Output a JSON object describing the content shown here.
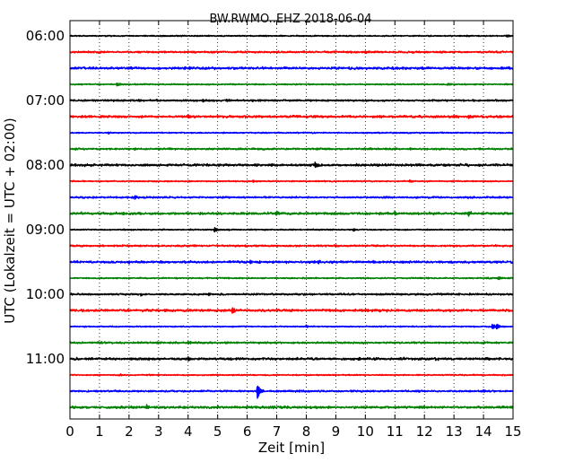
{
  "chart_data": {
    "type": "line",
    "title": "BW.RWMO..EHZ 2018-06-04",
    "xlabel": "Zeit  [min]",
    "ylabel": "UTC (Lokalzeit = UTC + 02:00)",
    "xlim": [
      0,
      15
    ],
    "x_ticks": [
      "0",
      "1",
      "2",
      "3",
      "4",
      "5",
      "6",
      "7",
      "8",
      "9",
      "10",
      "11",
      "12",
      "13",
      "14",
      "15"
    ],
    "y_ticks": [
      {
        "label": "06:00",
        "trace": 0
      },
      {
        "label": "07:00",
        "trace": 4
      },
      {
        "label": "08:00",
        "trace": 8
      },
      {
        "label": "09:00",
        "trace": 12
      },
      {
        "label": "10:00",
        "trace": 16
      },
      {
        "label": "11:00",
        "trace": 20
      }
    ],
    "grid": "vertical dotted",
    "color_cycle": [
      "#000000",
      "#ff0000",
      "#0000ff",
      "#008000"
    ],
    "trace_minutes": 15,
    "traces": [
      {
        "start": "06:00",
        "events": [
          {
            "t": 14.8,
            "amp": 1.2
          }
        ]
      },
      {
        "start": "06:15",
        "events": [
          {
            "t": 10.0,
            "amp": 1.8
          }
        ]
      },
      {
        "start": "06:30",
        "events": [
          {
            "t": 3.9,
            "amp": 0.9
          }
        ]
      },
      {
        "start": "06:45",
        "events": [
          {
            "t": 1.6,
            "amp": 2.0
          },
          {
            "t": 12.8,
            "amp": 1.0
          }
        ]
      },
      {
        "start": "07:00",
        "events": [
          {
            "t": 4.5,
            "amp": 1.8
          },
          {
            "t": 5.3,
            "amp": 1.2
          }
        ]
      },
      {
        "start": "07:15",
        "events": [
          {
            "t": 4.0,
            "amp": 1.6
          },
          {
            "t": 13.5,
            "amp": 1.6
          }
        ]
      },
      {
        "start": "07:30",
        "events": [
          {
            "t": 1.3,
            "amp": 1.2
          }
        ]
      },
      {
        "start": "07:45",
        "events": [
          {
            "t": 2.2,
            "amp": 1.0
          },
          {
            "t": 11.0,
            "amp": 1.0
          }
        ]
      },
      {
        "start": "08:00",
        "events": [
          {
            "t": 2.5,
            "amp": 1.4
          },
          {
            "t": 8.3,
            "amp": 3.5
          }
        ]
      },
      {
        "start": "08:15",
        "events": [
          {
            "t": 6.2,
            "amp": 1.2
          },
          {
            "t": 11.5,
            "amp": 1.2
          }
        ]
      },
      {
        "start": "08:30",
        "events": [
          {
            "t": 2.2,
            "amp": 2.2
          },
          {
            "t": 5.3,
            "amp": 1.0
          }
        ]
      },
      {
        "start": "08:45",
        "events": [
          {
            "t": 7.0,
            "amp": 2.6
          },
          {
            "t": 11.0,
            "amp": 2.4
          },
          {
            "t": 13.5,
            "amp": 2.4
          }
        ]
      },
      {
        "start": "09:00",
        "events": [
          {
            "t": 4.9,
            "amp": 3.2
          },
          {
            "t": 9.6,
            "amp": 1.4
          }
        ]
      },
      {
        "start": "09:15",
        "events": [
          {
            "t": 9.0,
            "amp": 0.9
          }
        ]
      },
      {
        "start": "09:30",
        "events": [
          {
            "t": 6.1,
            "amp": 2.0
          },
          {
            "t": 8.4,
            "amp": 2.2
          },
          {
            "t": 2.0,
            "amp": 1.2
          }
        ]
      },
      {
        "start": "09:45",
        "events": [
          {
            "t": 14.5,
            "amp": 2.0
          }
        ]
      },
      {
        "start": "10:00",
        "events": [
          {
            "t": 4.7,
            "amp": 1.8
          },
          {
            "t": 2.4,
            "amp": 1.2
          }
        ]
      },
      {
        "start": "10:15",
        "events": [
          {
            "t": 5.5,
            "amp": 3.2
          },
          {
            "t": 10.0,
            "amp": 1.2
          }
        ]
      },
      {
        "start": "10:30",
        "events": [
          {
            "t": 14.3,
            "amp": 3.0
          },
          {
            "t": 14.45,
            "amp": 3.0
          },
          {
            "t": 8.0,
            "amp": 1.2
          }
        ]
      },
      {
        "start": "10:45",
        "events": [
          {
            "t": 4.0,
            "amp": 1.6
          },
          {
            "t": 14.0,
            "amp": 1.0
          }
        ]
      },
      {
        "start": "11:00",
        "events": [
          {
            "t": 4.0,
            "amp": 2.4
          },
          {
            "t": 9.8,
            "amp": 1.2
          }
        ]
      },
      {
        "start": "11:15",
        "events": [
          {
            "t": 1.7,
            "amp": 1.0
          }
        ]
      },
      {
        "start": "11:30",
        "events": [
          {
            "t": 6.35,
            "amp": 9.5
          },
          {
            "t": 14.0,
            "amp": 1.6
          },
          {
            "t": 9.5,
            "amp": 1.0
          }
        ]
      },
      {
        "start": "11:45",
        "events": [
          {
            "t": 2.6,
            "amp": 2.8
          },
          {
            "t": 5.0,
            "amp": 1.2
          }
        ]
      }
    ]
  }
}
